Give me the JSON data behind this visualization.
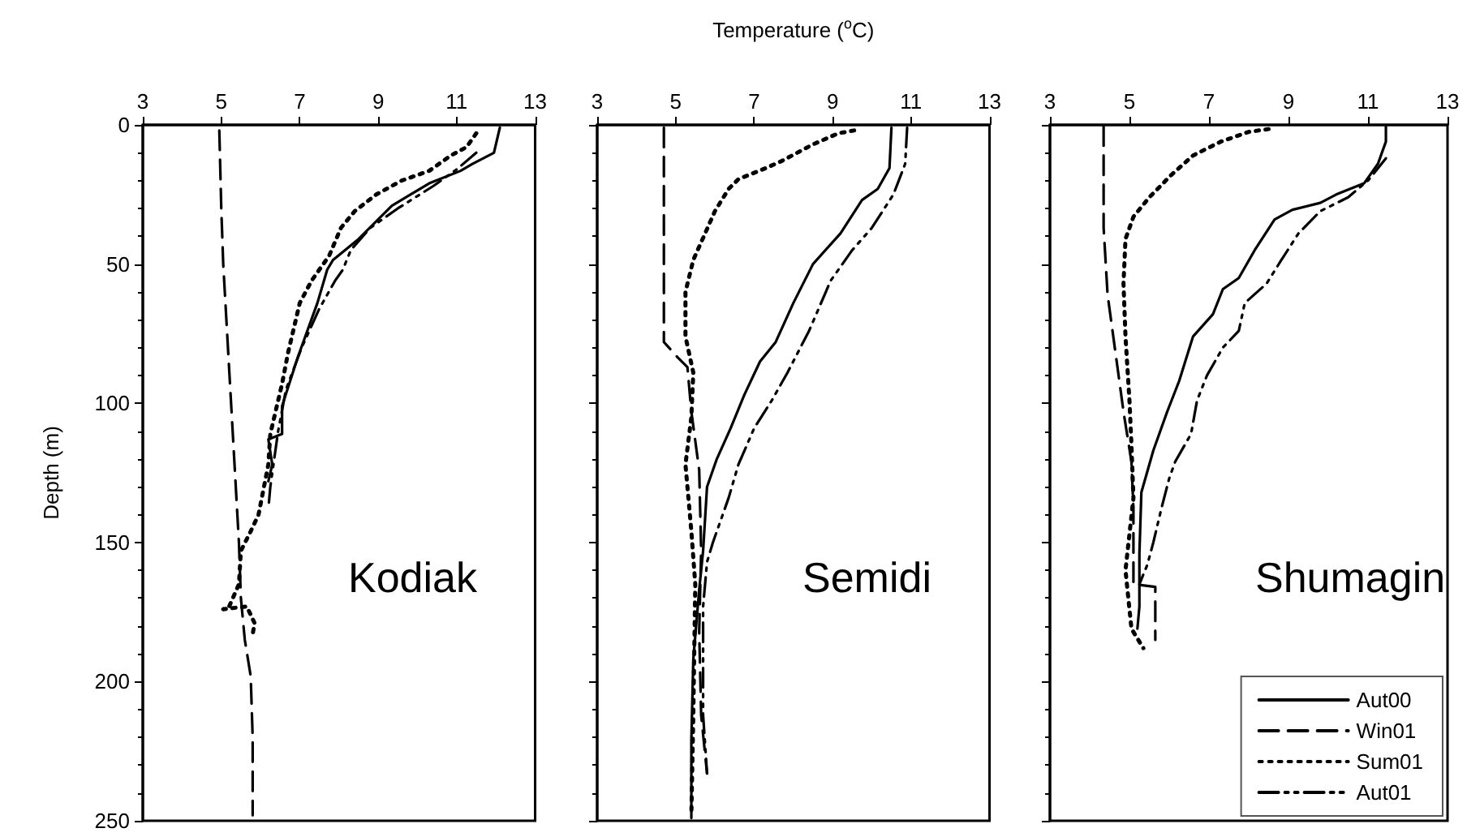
{
  "chart_data": [
    {
      "type": "line",
      "ylabel": "Depth (m)",
      "annotations": [
        "Kodiak"
      ],
      "xlim": [
        3,
        13
      ],
      "xticks": [
        3,
        5,
        7,
        9,
        11,
        13
      ],
      "ylim": [
        250,
        0
      ],
      "yticks": [
        0,
        50,
        100,
        150,
        200,
        250
      ],
      "grid": false,
      "legend": false,
      "marker": "none",
      "series": [
        {
          "color": "#000000",
          "line_style": "solid",
          "x": [
            12.1,
            11.95,
            11.4,
            11.1,
            10.3,
            9.35,
            8.5,
            7.85,
            7.7,
            7.45,
            6.95,
            6.55,
            6.55,
            6.2,
            6.3,
            6.2
          ],
          "values": [
            1,
            10,
            14,
            16.5,
            21,
            29,
            41,
            48.5,
            52,
            64,
            83.5,
            101,
            111,
            113,
            122,
            128
          ]
        },
        {
          "color": "#000000",
          "line_style": "dashed",
          "x": [
            4.95,
            5.0,
            5.05,
            5.15,
            5.25,
            5.35,
            5.45,
            5.5,
            5.6,
            5.75,
            5.8,
            5.8
          ],
          "values": [
            2,
            30,
            50,
            75,
            100,
            125,
            150,
            170,
            185,
            198,
            220,
            248
          ]
        },
        {
          "color": "#000000",
          "line_style": "dotted",
          "x": [
            11.5,
            11.25,
            10.85,
            10.3,
            9.6,
            8.95,
            8.4,
            8.05,
            7.75,
            7.3,
            7.0,
            6.7,
            6.55,
            6.25,
            6.2,
            5.95,
            5.75,
            5.5,
            5.45,
            5.2,
            5.05,
            5.65,
            5.85,
            5.8
          ],
          "values": [
            3,
            8,
            11,
            16.5,
            20,
            25,
            31,
            37,
            47,
            56,
            64,
            82,
            93,
            111,
            122,
            140,
            146,
            153,
            165,
            173,
            174,
            173,
            179,
            183
          ]
        },
        {
          "color": "#000000",
          "line_style": "dashdotdot",
          "x": [
            11.5,
            11.0,
            10.4,
            9.5,
            8.8,
            8.3,
            8.1,
            7.9,
            7.5,
            7.05,
            6.65,
            6.45,
            6.35,
            6.25,
            6.2
          ],
          "values": [
            10,
            16,
            22,
            30,
            37,
            45,
            52,
            56,
            66,
            80,
            95,
            110,
            120,
            130,
            138
          ]
        }
      ]
    },
    {
      "type": "line",
      "xlabel": "Temperature ($^{o}$C)",
      "annotations": [
        "Semidi"
      ],
      "xlim": [
        3,
        13
      ],
      "xticks": [
        3,
        5,
        7,
        9,
        11,
        13
      ],
      "ylim": [
        250,
        0
      ],
      "yticks": [
        0,
        50,
        100,
        150,
        200,
        250
      ],
      "tick_labels": "x",
      "grid": false,
      "legend": false,
      "marker": "none",
      "series": [
        {
          "color": "#000000",
          "line_style": "solid",
          "x": [
            10.5,
            10.45,
            10.15,
            9.75,
            9.2,
            8.5,
            8.0,
            7.55,
            7.15,
            6.75,
            6.4,
            6.05,
            5.8,
            5.7,
            5.6,
            5.45,
            5.4,
            5.4
          ],
          "values": [
            1,
            15.5,
            23,
            27,
            39,
            50,
            64,
            78,
            85,
            97,
            109,
            120,
            130,
            153,
            167,
            192,
            221,
            249
          ]
        },
        {
          "color": "#000000",
          "line_style": "dashed",
          "x": [
            4.7,
            4.7,
            5.05,
            5.3,
            5.4,
            5.6,
            5.65,
            5.6,
            5.65,
            5.8
          ],
          "values": [
            1,
            78,
            83.5,
            87,
            103,
            124,
            153,
            182,
            212,
            233
          ]
        },
        {
          "color": "#000000",
          "line_style": "dotted",
          "x": [
            9.55,
            9.15,
            8.5,
            7.7,
            7.3,
            6.6,
            6.35,
            6.0,
            5.75,
            5.45,
            5.25,
            5.25,
            5.45,
            5.4,
            5.25,
            5.4,
            5.5,
            5.45,
            5.4
          ],
          "values": [
            2,
            3,
            7,
            13,
            15.5,
            19.5,
            23,
            31,
            39,
            48.5,
            60,
            76,
            89,
            105,
            122,
            146,
            165,
            212,
            248
          ]
        },
        {
          "color": "#000000",
          "line_style": "dashdotdot",
          "x": [
            10.9,
            10.85,
            10.55,
            10.0,
            9.5,
            8.95,
            8.4,
            7.85,
            7.45,
            7.0,
            6.6,
            6.35,
            5.95,
            5.8,
            5.7,
            5.7,
            5.8
          ],
          "values": [
            1,
            14,
            25,
            37,
            45,
            56,
            74,
            89,
            99,
            109,
            122,
            134,
            150,
            157,
            173,
            212,
            233
          ]
        }
      ]
    },
    {
      "type": "line",
      "annotations": [
        "Shumagin"
      ],
      "xlim": [
        3,
        13
      ],
      "xticks": [
        3,
        5,
        7,
        9,
        11,
        13
      ],
      "ylim": [
        250,
        0
      ],
      "yticks": [
        0,
        50,
        100,
        150,
        200,
        250
      ],
      "tick_labels": "x",
      "grid": false,
      "legend": "bottom right",
      "marker": "none",
      "series": [
        {
          "name": "Aut00",
          "color": "#000000",
          "line_style": "solid",
          "x": [
            11.45,
            11.45,
            11.25,
            10.9,
            10.2,
            9.8,
            9.1,
            8.65,
            8.15,
            7.75,
            7.35,
            7.1,
            6.6,
            6.25,
            5.95,
            5.6,
            5.3,
            5.25,
            5.25,
            5.2
          ],
          "values": [
            0.5,
            6,
            14,
            21,
            25,
            28,
            30.5,
            34,
            45,
            55,
            59,
            68,
            76,
            92,
            103,
            117,
            132,
            154,
            173,
            181
          ]
        },
        {
          "name": "Win01",
          "color": "#000000",
          "line_style": "dashed",
          "x": [
            4.35,
            4.35,
            4.45,
            4.65,
            4.85,
            5.05,
            5.1,
            5.1,
            5.65,
            5.65
          ],
          "values": [
            0.5,
            37,
            61,
            82,
            103,
            121,
            138,
            165,
            166,
            185
          ]
        },
        {
          "name": "Sum01",
          "color": "#000000",
          "line_style": "dotted",
          "x": [
            8.5,
            8.0,
            7.3,
            6.6,
            6.05,
            5.5,
            5.1,
            4.9,
            4.85,
            4.9,
            5.0,
            5.05,
            5.1,
            4.9,
            5.05,
            5.35
          ],
          "values": [
            1.5,
            2.5,
            6,
            11,
            18,
            26,
            33,
            41,
            57,
            76,
            99,
            115,
            134,
            160,
            181,
            188
          ]
        },
        {
          "name": "Aut01",
          "color": "#000000",
          "line_style": "dashdotdot",
          "x": [
            11.45,
            11.0,
            10.5,
            9.8,
            9.25,
            8.8,
            8.45,
            7.9,
            7.75,
            7.35,
            6.95,
            6.7,
            6.55,
            6.15,
            6.0,
            5.8,
            5.6,
            5.45,
            5.25
          ],
          "values": [
            12,
            20,
            26,
            31,
            39,
            49,
            57,
            64,
            74,
            80,
            90,
            99,
            111,
            121,
            127,
            138,
            150,
            158,
            165
          ]
        }
      ]
    }
  ]
}
